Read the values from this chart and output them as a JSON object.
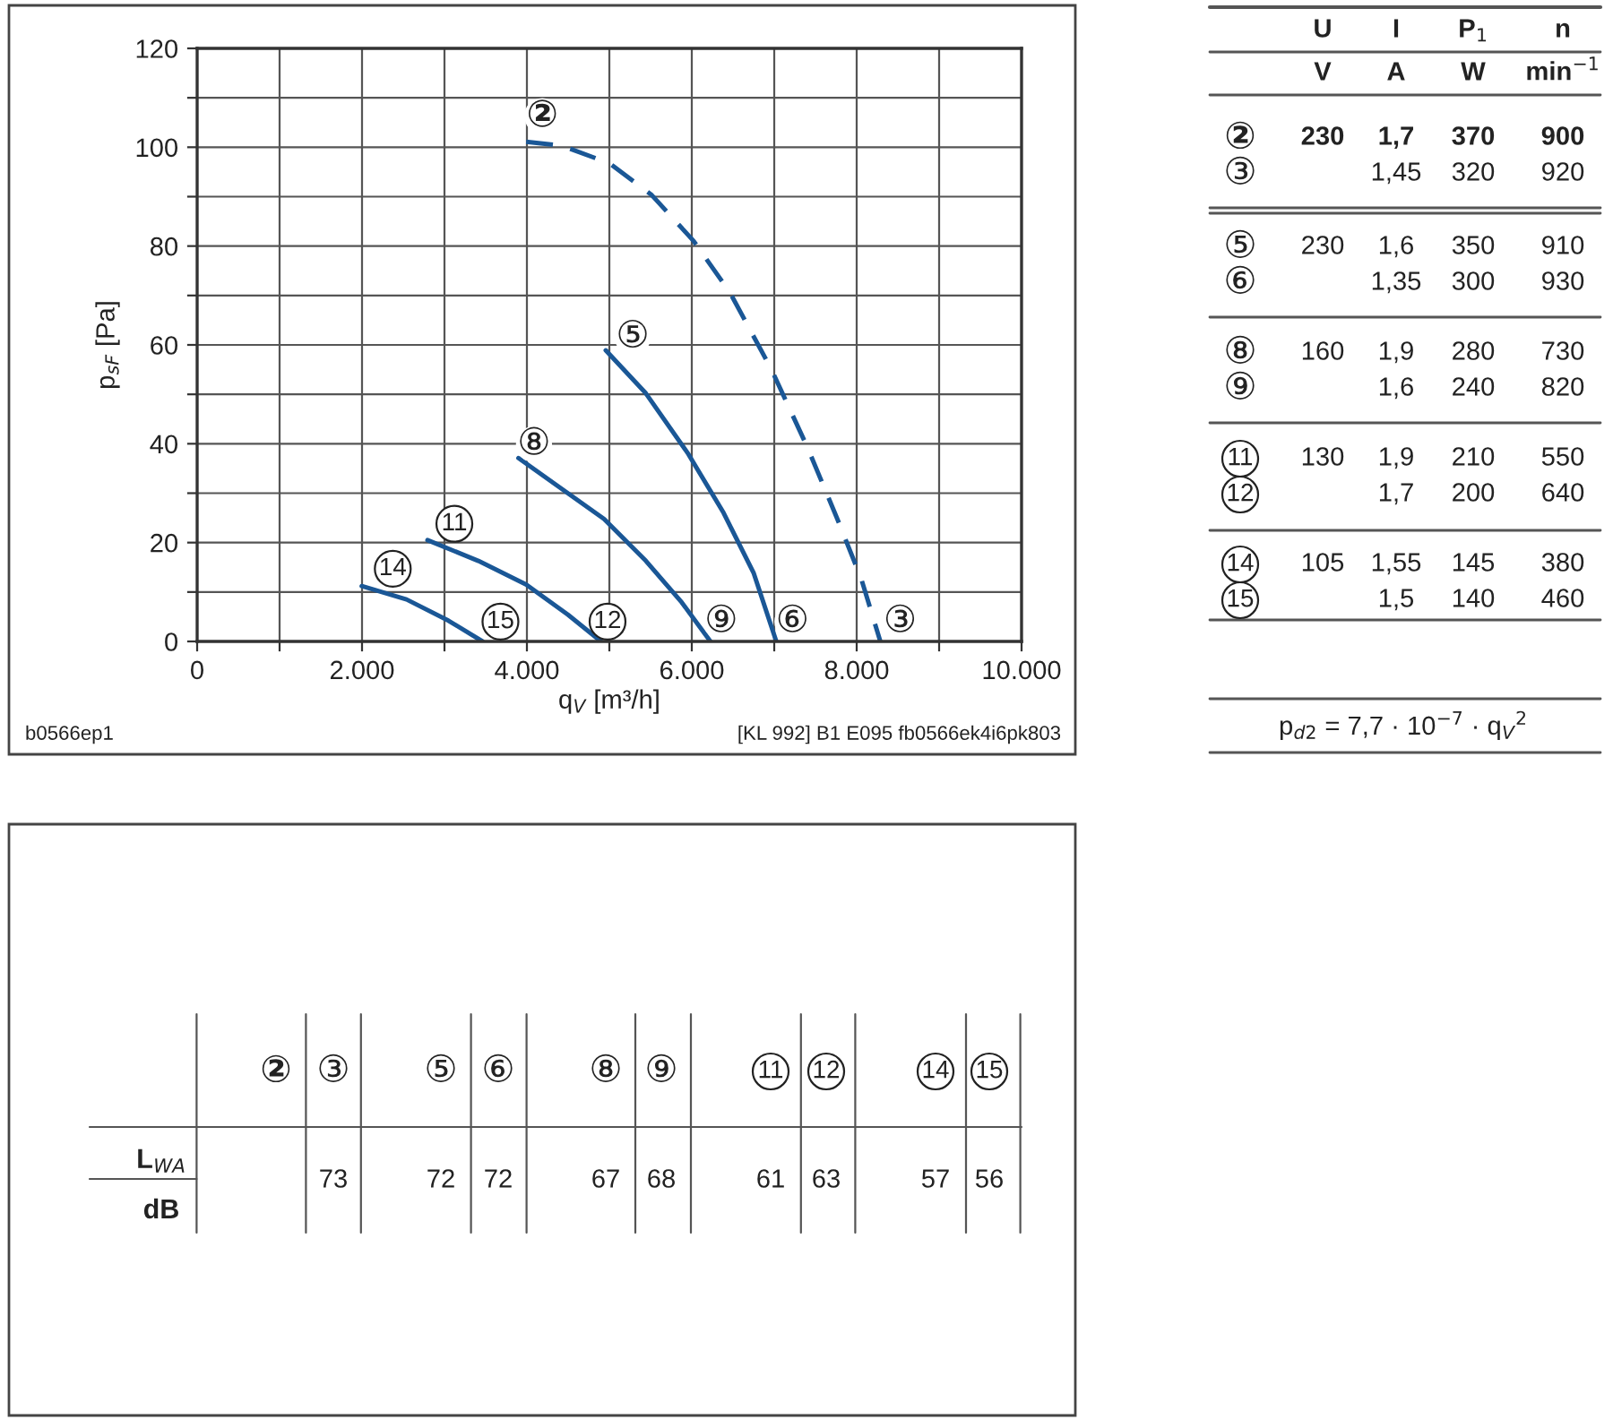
{
  "chart_data": [
    {
      "type": "line",
      "xlabel": "q$_{V}$ [m³/h]",
      "ylabel": "p$_{sF}$ [Pa]",
      "xlim": [
        0,
        10000
      ],
      "ylim": [
        0,
        120
      ],
      "xticks": [
        0,
        {
          "value": 1000,
          "label": null
        },
        {
          "value": 2000,
          "label": "2.000"
        },
        {
          "value": 3000,
          "label": null
        },
        {
          "value": 4000,
          "label": "4.000"
        },
        {
          "value": 5000,
          "label": null
        },
        {
          "value": 6000,
          "label": "6.000"
        },
        {
          "value": 7000,
          "label": null
        },
        {
          "value": 8000,
          "label": "8.000"
        },
        {
          "value": 9000,
          "label": null
        },
        {
          "value": 10000,
          "label": "10.000"
        }
      ],
      "yticks": [
        0,
        {
          "value": 10,
          "label": null
        },
        20,
        {
          "value": 30,
          "label": null
        },
        40,
        {
          "value": 50,
          "label": null
        },
        60,
        {
          "value": 70,
          "label": null
        },
        80,
        {
          "value": 90,
          "label": null
        },
        100,
        {
          "value": 110,
          "label": null
        },
        120
      ],
      "grid": true,
      "series": [
        {
          "type": "line",
          "color": "#1a5796",
          "line_style": "dashed",
          "x": [
            3991,
            4427,
            5007,
            5515,
            6023,
            6459,
            6967,
            7402,
            7765,
            8055,
            8287
          ],
          "values": [
            101.1,
            100.3,
            96.7,
            90.3,
            81.0,
            70.7,
            55.0,
            39.3,
            24.8,
            12.7,
            0
          ]
        },
        {
          "type": "line",
          "color": "#1a5796",
          "line_style": "solid",
          "x": [
            4956,
            5443,
            5951,
            6386,
            6749,
            7025
          ],
          "values": [
            58.9,
            50.2,
            38.1,
            26.0,
            13.9,
            0
          ]
        },
        {
          "type": "line",
          "color": "#1a5796",
          "line_style": "solid",
          "x": [
            3897,
            4427,
            4935,
            5443,
            5878,
            6226
          ],
          "values": [
            37.1,
            30.8,
            24.8,
            16.3,
            7.9,
            0
          ]
        },
        {
          "type": "line",
          "color": "#1a5796",
          "line_style": "solid",
          "x": [
            2794,
            3411,
            3991,
            4499,
            4898
          ],
          "values": [
            20.5,
            16.3,
            11.5,
            5.4,
            0
          ]
        },
        {
          "type": "line",
          "color": "#1a5796",
          "line_style": "solid",
          "x": [
            1996,
            2540,
            3048,
            3462
          ],
          "values": [
            11.2,
            8.5,
            4.2,
            0
          ]
        }
      ],
      "annotations": [
        "②",
        "⑤",
        "⑧",
        "11",
        "14",
        "15",
        "12",
        "⑨",
        "⑥",
        "③",
        "b0566ep1",
        "[KL 992] B1 E095 fb0566ek4i6pk803"
      ]
    },
    {
      "type": "other",
      "annotations": [
        "U",
        "I",
        "P$_{1}$",
        "n",
        "V",
        "A",
        "W",
        "min$^{−1}$",
        "②",
        "230",
        "1,7",
        "370",
        "900",
        "③",
        "1,45",
        "320",
        "920",
        "⑤",
        "230",
        "1,6",
        "350",
        "910",
        "⑥",
        "1,35",
        "300",
        "930",
        "⑧",
        "160",
        "1,9",
        "280",
        "730",
        "⑨",
        "1,6",
        "240",
        "820",
        "11",
        "130",
        "1,9",
        "210",
        "550",
        "12",
        "1,7",
        "200",
        "640",
        "14",
        "105",
        "1,55",
        "145",
        "380",
        "15",
        "1,5",
        "140",
        "460",
        "p$_{d2}$ = 7,7 · 10$^{−7}$ · q$_{V}$$^{2}$"
      ]
    },
    {
      "type": "other",
      "annotations": [
        "L$_{WA}$",
        "dB",
        "②",
        "③",
        "⑤",
        "⑥",
        "⑧",
        "⑨",
        "11",
        "12",
        "14",
        "15",
        "73",
        "72",
        "72",
        "67",
        "68",
        "61",
        "63",
        "57",
        "56"
      ]
    }
  ]
}
